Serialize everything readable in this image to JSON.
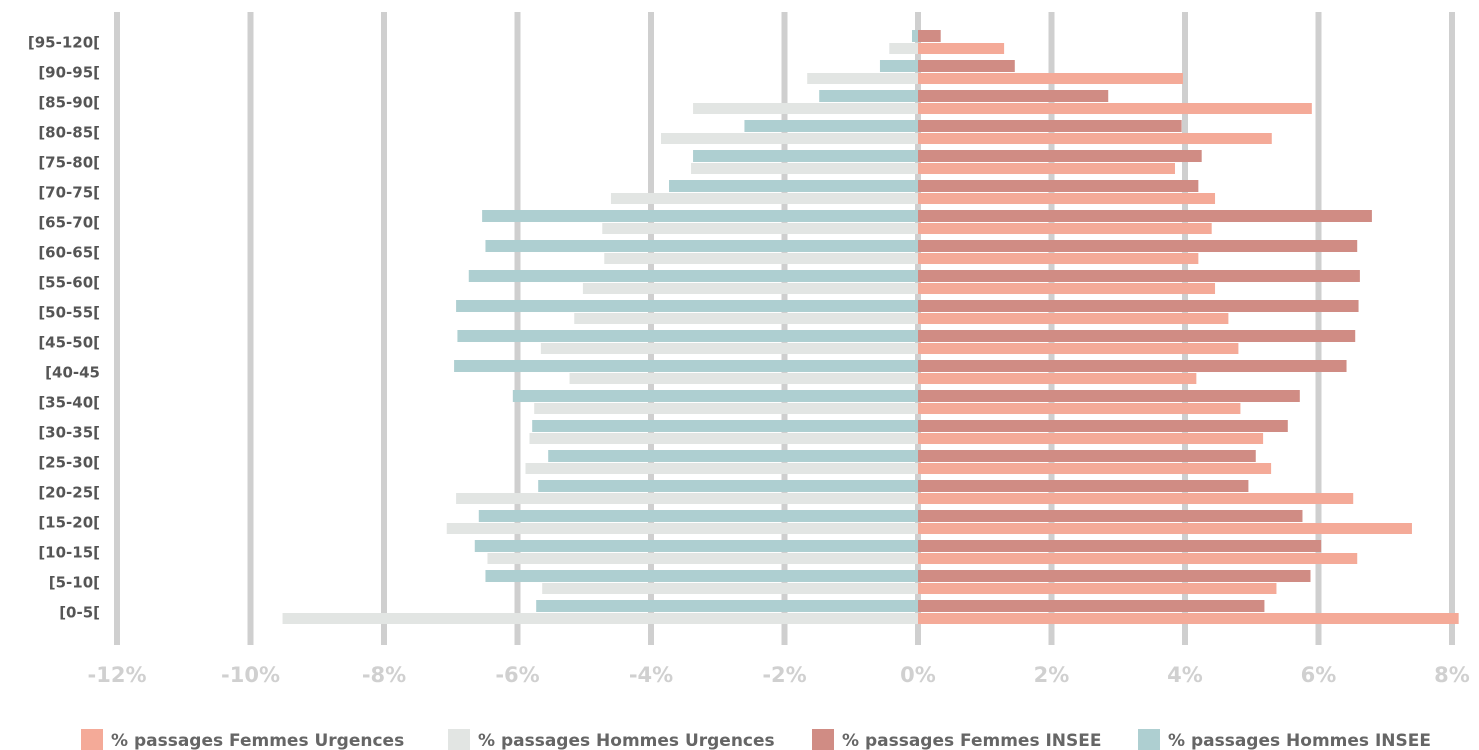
{
  "chart_data": {
    "type": "bar",
    "orientation": "horizontal",
    "categories": [
      "[95-120[",
      "[90-95[",
      "[85-90[",
      "[80-85[",
      "[75-80[",
      "[70-75[",
      "[65-70[",
      "[60-65[",
      "[55-60[",
      "[50-55[",
      "[45-50[",
      "[40-45",
      "[35-40[",
      "[30-35[",
      "[25-30[",
      "[20-25[",
      "[15-20[",
      "[10-15[",
      "[5-10[",
      "[0-5["
    ],
    "series": [
      {
        "name": "% passages Femmes Urgences",
        "color": "#f4aa98",
        "values": [
          1.29,
          3.97,
          5.9,
          5.3,
          3.85,
          4.45,
          4.4,
          4.2,
          4.45,
          4.65,
          4.8,
          4.17,
          4.83,
          5.17,
          5.29,
          6.52,
          7.4,
          6.58,
          5.37,
          8.1
        ]
      },
      {
        "name": "% passages Hommes Urgences",
        "color": "#e2e5e3",
        "values": [
          -0.43,
          -1.66,
          -3.37,
          -3.85,
          -3.4,
          -4.6,
          -4.73,
          -4.7,
          -5.02,
          -5.15,
          -5.65,
          -5.22,
          -5.75,
          -5.82,
          -5.88,
          -6.92,
          -7.06,
          -6.45,
          -5.63,
          -9.52
        ]
      },
      {
        "name": "% passages Femmes INSEE",
        "color": "#d08c84",
        "values": [
          0.34,
          1.45,
          2.85,
          3.95,
          4.25,
          4.2,
          6.8,
          6.58,
          6.62,
          6.6,
          6.55,
          6.42,
          5.72,
          5.54,
          5.06,
          4.95,
          5.76,
          6.04,
          5.88,
          5.19
        ]
      },
      {
        "name": "% passages Hommes INSEE",
        "color": "#aecfd1",
        "values": [
          -0.09,
          -0.57,
          -1.48,
          -2.6,
          -3.37,
          -3.73,
          -6.53,
          -6.48,
          -6.73,
          -6.92,
          -6.9,
          -6.95,
          -6.07,
          -5.78,
          -5.54,
          -5.69,
          -6.58,
          -6.64,
          -6.48,
          -5.72
        ]
      }
    ],
    "xlim": [
      -12,
      8
    ],
    "xticks": [
      {
        "value": -12,
        "label": "-12%"
      },
      {
        "value": -10,
        "label": "-10%"
      },
      {
        "value": -8,
        "label": "-8%"
      },
      {
        "value": -6,
        "label": "-6%"
      },
      {
        "value": -4,
        "label": "-4%"
      },
      {
        "value": -2,
        "label": "-2%"
      },
      {
        "value": 0,
        "label": "0%"
      },
      {
        "value": 2,
        "label": "2%"
      },
      {
        "value": 4,
        "label": "4%"
      },
      {
        "value": 6,
        "label": "6%"
      },
      {
        "value": 8,
        "label": "8%"
      }
    ],
    "grid": true,
    "legend": "bottom"
  }
}
